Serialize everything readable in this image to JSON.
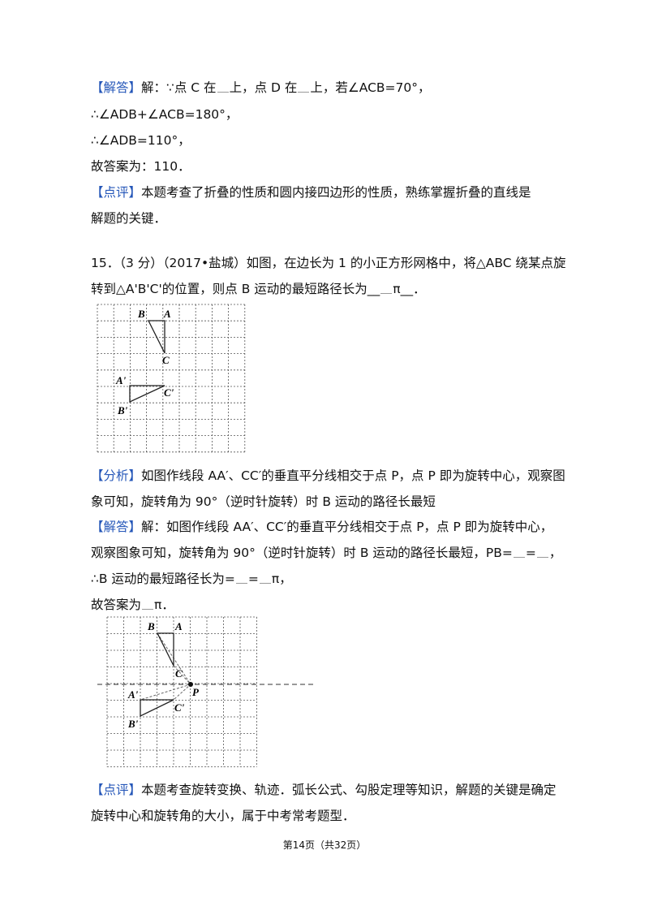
{
  "section_a": {
    "label": "【解答】",
    "lines": [
      "解：∵点 C 在",
      "上，点 D 在",
      "上，若∠ACB=70°，",
      "∴∠ADB+∠ACB=180°，",
      "∴∠ADB=110°，",
      "故答案为：110．"
    ]
  },
  "comment_a": {
    "label": "【点评】",
    "lines": [
      "本题考查了折叠的性质和圆内接四边形的性质，熟练掌握折叠的直线是",
      "解题的关键．"
    ]
  },
  "question": {
    "lines": [
      "15．（3 分）（2017•盐城）如图，在边长为 1 的小正方形网格中，将△ABC 绕某点旋",
      "转到△A'B'C'的位置，则点 B 运动的最短路径长为__",
      "π__．"
    ]
  },
  "figure_1": {
    "labels": [
      "B",
      "A",
      "C",
      "A'",
      "C'",
      "B'"
    ]
  },
  "analysis": {
    "label": "【分析】",
    "lines": [
      "如图作线段 AA′、CC′的垂直平分线相交于点 P，点 P 即为旋转中心，观察图",
      "象可知，旋转角为 90°（逆时针旋转）时 B 运动的路径长最短"
    ]
  },
  "section_b": {
    "label": "【解答】",
    "lines": [
      "解：如图作线段 AA′、CC′的垂直平分线相交于点 P，点 P 即为旋转中心，",
      "观察图象可知，旋转角为 90°（逆时针旋转）时 B 运动的路径长最短，PB=",
      "=",
      "，",
      "∴B 运动的最短路径长为=",
      "=",
      "π，",
      "故答案为",
      "π．"
    ]
  },
  "figure_2": {
    "labels": [
      "B",
      "A",
      "C",
      "A'",
      "P",
      "C'",
      "B'"
    ]
  },
  "comment_b": {
    "label": "【点评】",
    "lines": [
      "本题考查旋转变换、轨迹．弧长公式、勾股定理等知识，解题的关键是确定",
      "旋转中心和旋转角的大小，属于中考常考题型．"
    ]
  },
  "footer": {
    "page": "第14页（共32页）"
  }
}
